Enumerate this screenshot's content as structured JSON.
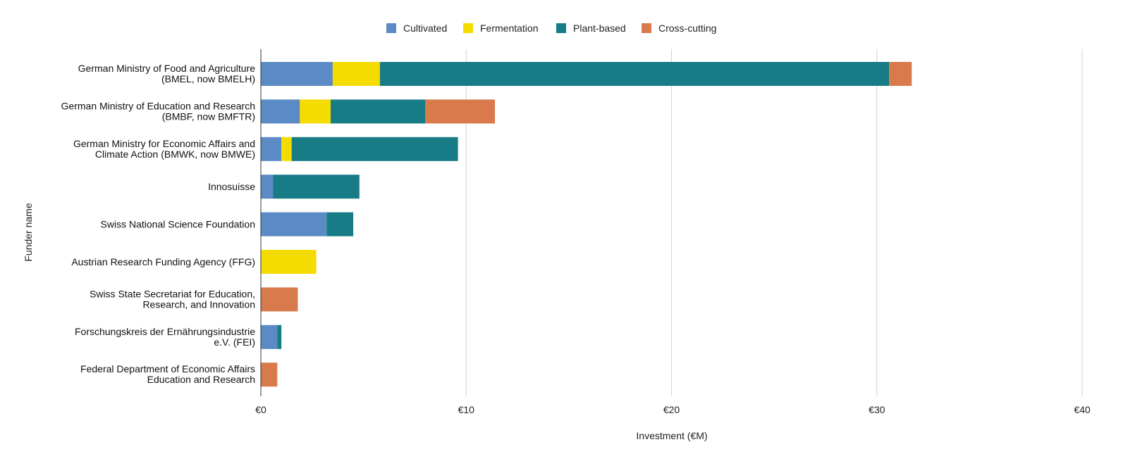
{
  "chart_data": {
    "type": "bar",
    "orientation": "horizontal",
    "stacked": true,
    "xlabel": "Investment (€M)",
    "ylabel": "Funder name",
    "xlim": [
      0,
      40
    ],
    "xticks": [
      0,
      10,
      20,
      30,
      40
    ],
    "xtick_labels": [
      "€0",
      "€10",
      "€20",
      "€30",
      "€40"
    ],
    "grid": "vertical",
    "legend_position": "top-center",
    "categories": [
      [
        "German Ministry of Food and Agriculture",
        "(BMEL, now BMELH)"
      ],
      [
        "German Ministry of Education and Research",
        "(BMBF, now BMFTR)"
      ],
      [
        "German Ministry for Economic Affairs and",
        "Climate Action (BMWK, now BMWE)"
      ],
      [
        "Innosuisse"
      ],
      [
        "Swiss National Science Foundation"
      ],
      [
        "Austrian Research Funding Agency (FFG)"
      ],
      [
        "Swiss State Secretariat for Education,",
        "Research, and Innovation"
      ],
      [
        "Forschungskreis der Ernährungsindustrie",
        "e.V. (FEI)"
      ],
      [
        "Federal Department of Economic Affairs",
        "Education and Research"
      ]
    ],
    "series": [
      {
        "name": "Cultivated",
        "color": "#5b8bc5",
        "values": [
          3.5,
          1.9,
          1.0,
          0.6,
          3.2,
          0,
          0,
          0.8,
          0
        ]
      },
      {
        "name": "Fermentation",
        "color": "#f5dc00",
        "values": [
          2.3,
          1.5,
          0.5,
          0,
          0,
          2.7,
          0,
          0,
          0
        ]
      },
      {
        "name": "Plant-based",
        "color": "#177c85",
        "values": [
          24.8,
          4.6,
          8.1,
          4.2,
          1.3,
          0,
          0,
          0.2,
          0
        ]
      },
      {
        "name": "Cross-cutting",
        "color": "#d87a4b",
        "values": [
          1.1,
          3.4,
          0,
          0,
          0,
          0,
          1.8,
          0,
          0.8
        ]
      }
    ]
  }
}
